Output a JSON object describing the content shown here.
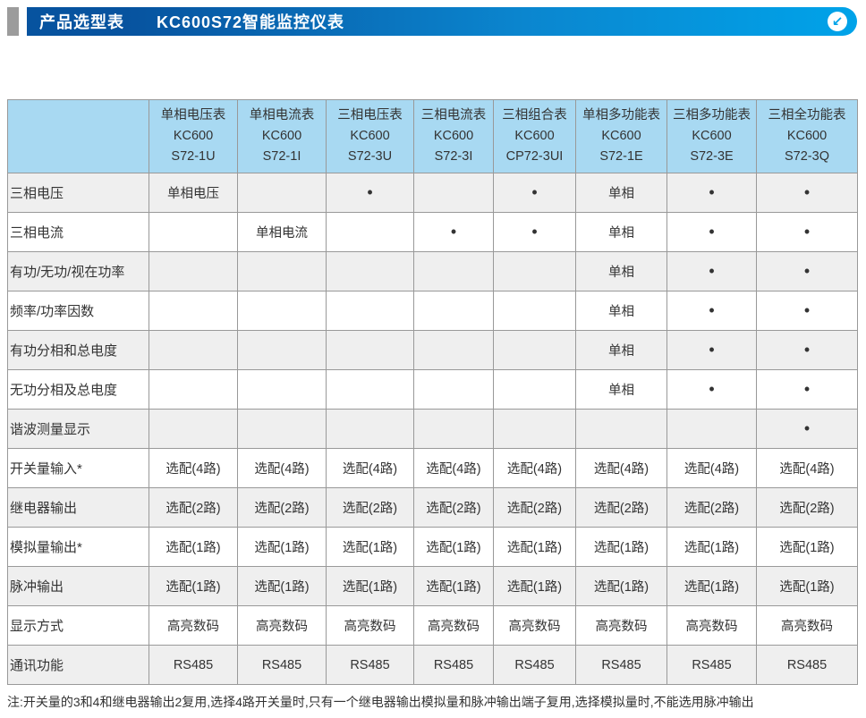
{
  "header": {
    "title_left": "产品选型表",
    "title_right": "KC600S72智能监控仪表",
    "icon_glyph": "↙"
  },
  "table": {
    "columns": [
      {
        "lines": [
          "单相电压表",
          "KC600",
          "S72-1U"
        ]
      },
      {
        "lines": [
          "单相电流表",
          "KC600",
          "S72-1I"
        ]
      },
      {
        "lines": [
          "三相电压表",
          "KC600",
          "S72-3U"
        ]
      },
      {
        "lines": [
          "三相电流表",
          "KC600",
          "S72-3I"
        ]
      },
      {
        "lines": [
          "三相组合表",
          "KC600",
          "CP72-3UI"
        ]
      },
      {
        "lines": [
          "单相多功能表",
          "KC600",
          "S72-1E"
        ]
      },
      {
        "lines": [
          "三相多功能表",
          "KC600",
          "S72-3E"
        ]
      },
      {
        "lines": [
          "三相全功能表",
          "KC600",
          "S72-3Q"
        ]
      }
    ],
    "rows": [
      {
        "label": "三相电压",
        "cells": [
          "单相电压",
          "",
          "•",
          "",
          "•",
          "单相",
          "•",
          "•"
        ]
      },
      {
        "label": "三相电流",
        "cells": [
          "",
          "单相电流",
          "",
          "•",
          "•",
          "单相",
          "•",
          "•"
        ]
      },
      {
        "label": "有功/无功/视在功率",
        "cells": [
          "",
          "",
          "",
          "",
          "",
          "单相",
          "•",
          "•"
        ]
      },
      {
        "label": "频率/功率因数",
        "cells": [
          "",
          "",
          "",
          "",
          "",
          "单相",
          "•",
          "•"
        ]
      },
      {
        "label": "有功分相和总电度",
        "cells": [
          "",
          "",
          "",
          "",
          "",
          "单相",
          "•",
          "•"
        ]
      },
      {
        "label": "无功分相及总电度",
        "cells": [
          "",
          "",
          "",
          "",
          "",
          "单相",
          "•",
          "•"
        ]
      },
      {
        "label": "谐波测量显示",
        "cells": [
          "",
          "",
          "",
          "",
          "",
          "",
          "",
          "•"
        ]
      },
      {
        "label": "开关量输入*",
        "cells": [
          "选配(4路)",
          "选配(4路)",
          "选配(4路)",
          "选配(4路)",
          "选配(4路)",
          "选配(4路)",
          "选配(4路)",
          "选配(4路)"
        ]
      },
      {
        "label": "继电器输出",
        "cells": [
          "选配(2路)",
          "选配(2路)",
          "选配(2路)",
          "选配(2路)",
          "选配(2路)",
          "选配(2路)",
          "选配(2路)",
          "选配(2路)"
        ]
      },
      {
        "label": "模拟量输出*",
        "cells": [
          "选配(1路)",
          "选配(1路)",
          "选配(1路)",
          "选配(1路)",
          "选配(1路)",
          "选配(1路)",
          "选配(1路)",
          "选配(1路)"
        ]
      },
      {
        "label": "脉冲输出",
        "cells": [
          "选配(1路)",
          "选配(1路)",
          "选配(1路)",
          "选配(1路)",
          "选配(1路)",
          "选配(1路)",
          "选配(1路)",
          "选配(1路)"
        ]
      },
      {
        "label": "显示方式",
        "cells": [
          "高亮数码",
          "高亮数码",
          "高亮数码",
          "高亮数码",
          "高亮数码",
          "高亮数码",
          "高亮数码",
          "高亮数码"
        ]
      },
      {
        "label": "通讯功能",
        "cells": [
          "RS485",
          "RS485",
          "RS485",
          "RS485",
          "RS485",
          "RS485",
          "RS485",
          "RS485"
        ]
      }
    ]
  },
  "footnote": "注:开关量的3和4和继电器输出2复用,选择4路开关量时,只有一个继电器输出模拟量和脉冲输出端子复用,选择模拟量时,不能选用脉冲输出",
  "colors": {
    "bar_left": "#07539f",
    "bar_mid": "#0b86cf",
    "bar_right": "#00a3e9",
    "table_header_bg": "#a8d9f2",
    "row_alt_bg": "#efefef",
    "grid_line": "#999999",
    "text": "#333333"
  }
}
